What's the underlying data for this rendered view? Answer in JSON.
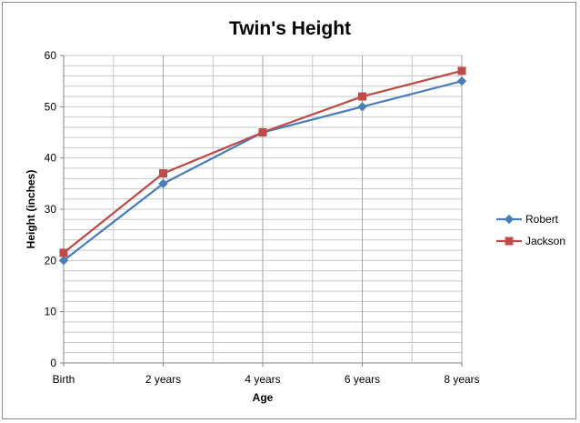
{
  "chart_data": {
    "type": "line",
    "title": "Twin's Height",
    "xlabel": "Age",
    "ylabel": "Height (inches)",
    "categories": [
      "Birth",
      "2 years",
      "4 years",
      "6 years",
      "8 years"
    ],
    "y_ticks": [
      "0",
      "10",
      "20",
      "30",
      "40",
      "50",
      "60"
    ],
    "ylim": [
      0,
      60
    ],
    "grid": true,
    "legend_position": "right",
    "series": [
      {
        "name": "Robert",
        "values": [
          20,
          35,
          45,
          50,
          55
        ],
        "color": "#4a7ebb",
        "marker": "diamond"
      },
      {
        "name": "Jackson",
        "values": [
          21.5,
          37,
          45,
          52,
          57
        ],
        "color": "#be4b48",
        "marker": "square"
      }
    ]
  }
}
